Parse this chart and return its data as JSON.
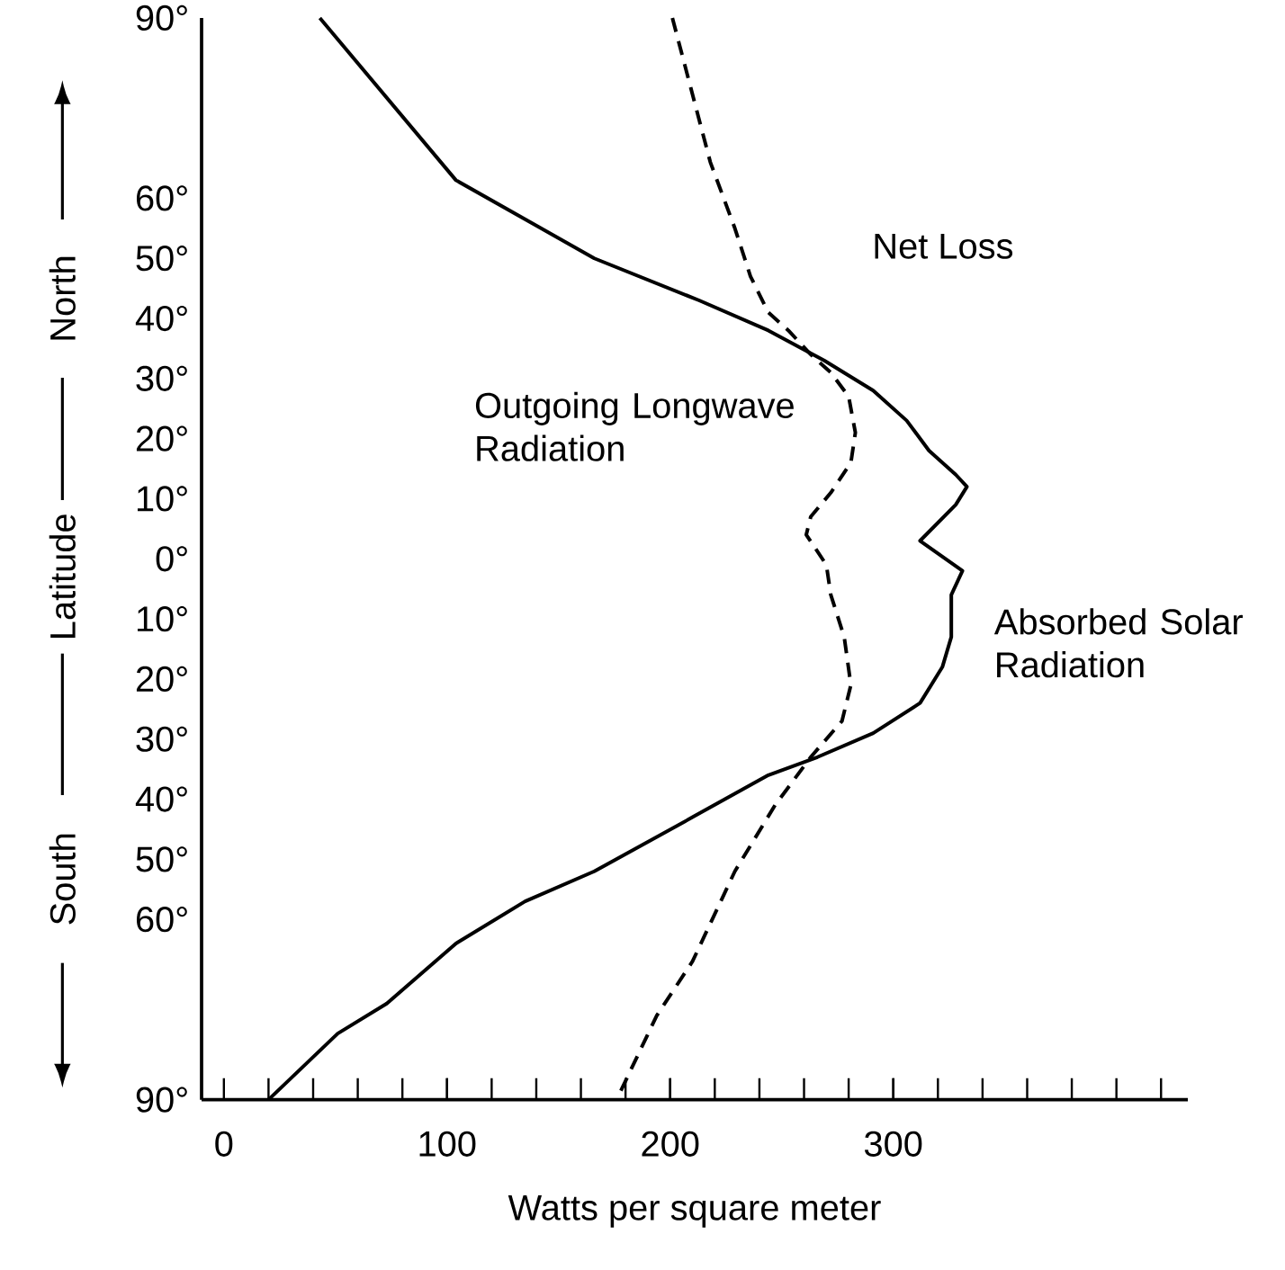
{
  "chart_data": {
    "type": "line",
    "xlabel": "Watts per square meter",
    "ylabel": "Latitude",
    "xlim": [
      -10,
      432
    ],
    "ylim": [
      -90,
      90
    ],
    "xticks": [
      {
        "value": 0,
        "label": "0"
      },
      {
        "value": 100,
        "label": "100"
      },
      {
        "value": 200,
        "label": "200"
      },
      {
        "value": 300,
        "label": "300"
      }
    ],
    "yticks": [
      {
        "value": 90,
        "label": "90°"
      },
      {
        "value": 60,
        "label": "60°"
      },
      {
        "value": 50,
        "label": "50°"
      },
      {
        "value": 40,
        "label": "40°"
      },
      {
        "value": 30,
        "label": "30°"
      },
      {
        "value": 20,
        "label": "20°"
      },
      {
        "value": 10,
        "label": "10°"
      },
      {
        "value": 0,
        "label": "0°"
      },
      {
        "value": -10,
        "label": "10°"
      },
      {
        "value": -20,
        "label": "20°"
      },
      {
        "value": -30,
        "label": "30°"
      },
      {
        "value": -40,
        "label": "40°"
      },
      {
        "value": -50,
        "label": "50°"
      },
      {
        "value": -60,
        "label": "60°"
      },
      {
        "value": -90,
        "label": "90°"
      }
    ],
    "series": [
      {
        "name": "Absorbed Solar Radiation",
        "color": "#000000",
        "line_style": "solid",
        "x": [
          43,
          104,
          166,
          213,
          244,
          269,
          291,
          306,
          316,
          328,
          333,
          328,
          312,
          331,
          326,
          326,
          322,
          312,
          291,
          266,
          244,
          210,
          166,
          135,
          104,
          73,
          51,
          20
        ],
        "values": [
          90,
          63,
          50,
          43,
          38,
          33,
          28,
          23,
          18,
          14,
          12,
          9,
          3,
          -2,
          -6,
          -13,
          -18,
          -24,
          -29,
          -33,
          -36,
          -43,
          -52,
          -57,
          -64,
          -74,
          -79,
          -90
        ]
      },
      {
        "name": "Outgoing Longwave Radiation",
        "color": "#000000",
        "line_style": "dashed",
        "x": [
          201,
          218,
          229,
          236,
          244,
          253,
          263,
          272,
          280,
          283,
          281,
          272,
          263,
          261,
          270,
          272,
          278,
          281,
          277,
          263,
          247,
          229,
          210,
          194,
          176
        ],
        "values": [
          90,
          66,
          55,
          47,
          41,
          38,
          34,
          31,
          27,
          21,
          16,
          11,
          7,
          4,
          -1,
          -6,
          -13,
          -21,
          -27,
          -33,
          -41,
          -52,
          -67,
          -76,
          -90
        ]
      }
    ],
    "annotations": [
      "Net Loss",
      "North",
      "South"
    ],
    "marker": "none",
    "grid": false,
    "legend": false
  }
}
